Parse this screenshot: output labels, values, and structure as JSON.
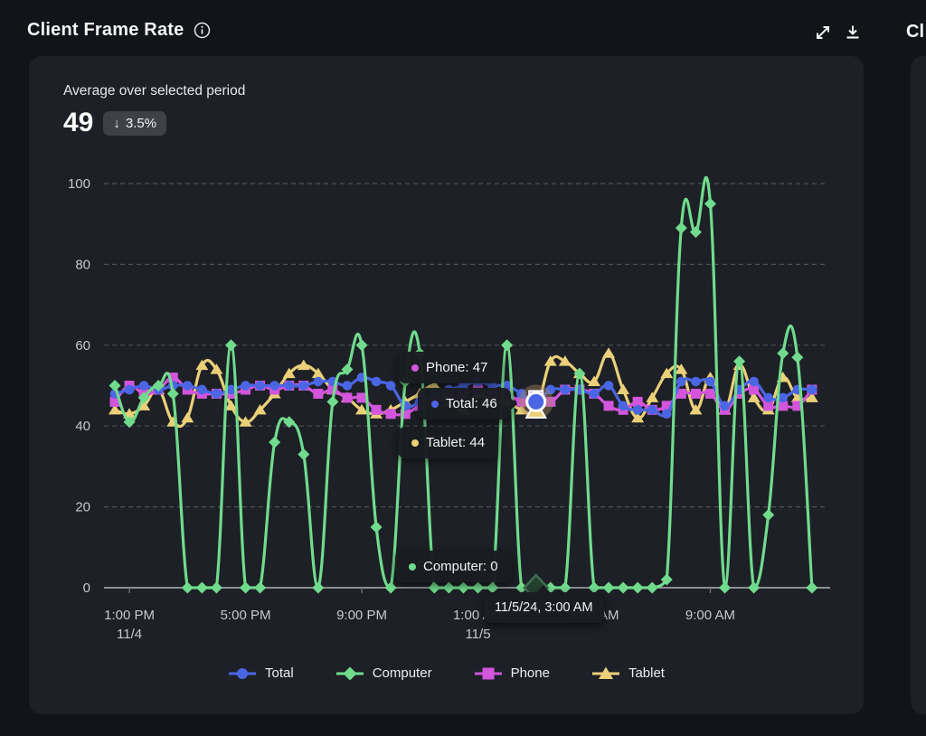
{
  "header": {
    "title": "Client Frame Rate",
    "next_panel_title_partial": "Cl",
    "icons": [
      "info-icon",
      "expand-icon",
      "download-icon"
    ]
  },
  "summary": {
    "label": "Average over selected period",
    "value": "49",
    "delta_arrow": "↓",
    "delta": "3.5%"
  },
  "chart_data": {
    "type": "line",
    "title": "Client Frame Rate",
    "x_start": "11/4/24 12:30 PM",
    "x_step_minutes": 30,
    "ylim": [
      0,
      100
    ],
    "y_ticks": [
      0,
      20,
      40,
      60,
      80,
      100
    ],
    "grid": "horizontal-dashed",
    "legend_position": "bottom",
    "x_ticks": [
      {
        "index": 1,
        "label": "1:00 PM",
        "sublabel": "11/4"
      },
      {
        "index": 9,
        "label": "5:00 PM",
        "sublabel": ""
      },
      {
        "index": 17,
        "label": "9:00 PM",
        "sublabel": ""
      },
      {
        "index": 25,
        "label": "1:00 AM",
        "sublabel": "11/5"
      },
      {
        "index": 33,
        "label": "5:00 AM",
        "sublabel": ""
      },
      {
        "index": 41,
        "label": "9:00 AM",
        "sublabel": ""
      }
    ],
    "series": [
      {
        "name": "Total",
        "color": "#4a66e4",
        "marker": "circle",
        "values": [
          48,
          49,
          50,
          49,
          50,
          50,
          49,
          48,
          49,
          50,
          50,
          50,
          50,
          50,
          51,
          51,
          50,
          52,
          51,
          50,
          45,
          46,
          48,
          49,
          50,
          51,
          50,
          50,
          48,
          46,
          49,
          49,
          49,
          48,
          50,
          45,
          44,
          44,
          43,
          51,
          51,
          51,
          45,
          49,
          51,
          47,
          47,
          49,
          49
        ]
      },
      {
        "name": "Computer",
        "color": "#70db8c",
        "marker": "diamond",
        "values": [
          50,
          41,
          47,
          50,
          48,
          0,
          0,
          0,
          60,
          0,
          0,
          36,
          41,
          33,
          0,
          46,
          54,
          60,
          15,
          0,
          51,
          58,
          0,
          0,
          0,
          0,
          0,
          60,
          0,
          0,
          0,
          0,
          53,
          0,
          0,
          0,
          0,
          0,
          2,
          89,
          88,
          95,
          0,
          56,
          0,
          18,
          58,
          57,
          0
        ]
      },
      {
        "name": "Phone",
        "color": "#d355dc",
        "marker": "square",
        "values": [
          46,
          50,
          48,
          49,
          52,
          49,
          48,
          48,
          48,
          49,
          50,
          49,
          50,
          50,
          48,
          49,
          47,
          47,
          44,
          43,
          43,
          45,
          46,
          47,
          48,
          49,
          48,
          48,
          46,
          47,
          46,
          49,
          49,
          48,
          45,
          44,
          46,
          44,
          45,
          48,
          48,
          48,
          44,
          48,
          49,
          45,
          45,
          45,
          49
        ]
      },
      {
        "name": "Tablet",
        "color": "#ebd079",
        "marker": "triangle",
        "values": [
          44,
          43,
          45,
          49,
          41,
          42,
          55,
          54,
          45,
          41,
          44,
          48,
          53,
          55,
          53,
          49,
          47,
          44,
          43,
          44,
          46,
          48,
          50,
          46,
          44,
          48,
          46,
          46,
          44,
          44,
          56,
          56,
          53,
          51,
          58,
          49,
          42,
          47,
          53,
          54,
          44,
          52,
          44,
          55,
          47,
          44,
          52,
          47,
          47
        ]
      }
    ],
    "hover": {
      "index": 29,
      "timestamp": "11/5/24, 3:00 AM",
      "values": {
        "Phone": 47,
        "Total": 46,
        "Tablet": 44,
        "Computer": 0
      }
    }
  },
  "tooltips": {
    "phone": {
      "text": "Phone: 47",
      "color": "#d355dc"
    },
    "total": {
      "text": "Total: 46",
      "color": "#4a66e4"
    },
    "tablet": {
      "text": "Tablet: 44",
      "color": "#ebd079"
    },
    "computer": {
      "text": "Computer: 0",
      "color": "#70db8c"
    },
    "timestamp": {
      "text": "11/5/24, 3:00 AM"
    }
  },
  "colors": {
    "page_bg": "#131419",
    "card_bg": "#1d2026",
    "grid_line": "#4e5157",
    "axis_line": "#8b8e93",
    "tick_label": "#c6c9cc",
    "badge_bg": "#3e4248"
  }
}
